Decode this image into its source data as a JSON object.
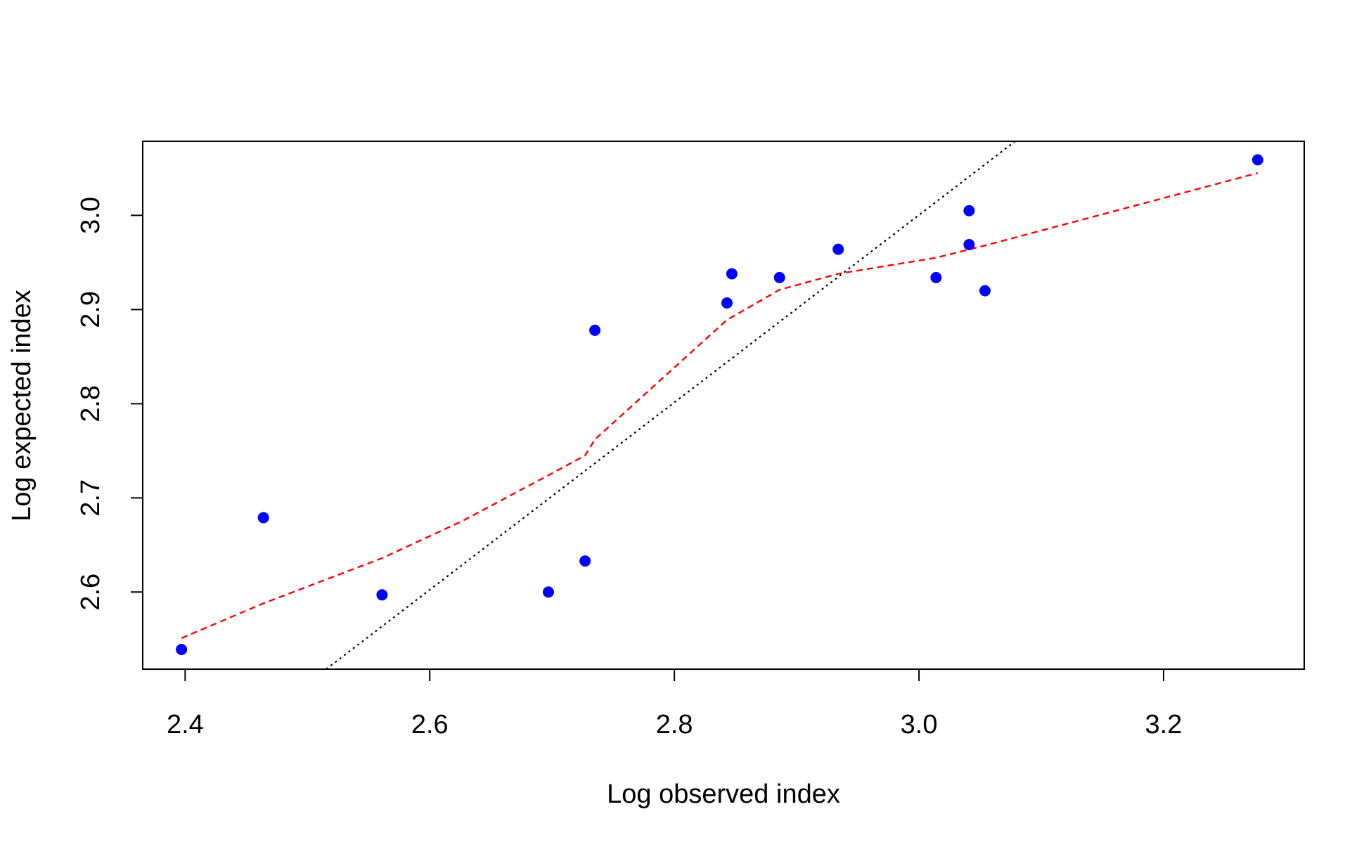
{
  "chart_data": {
    "type": "scatter",
    "title": "",
    "xlabel": "Log observed index",
    "ylabel": "Log expected index",
    "xlim": [
      2.3653,
      3.315
    ],
    "ylim": [
      2.5181,
      3.0787
    ],
    "xticks": [
      2.4,
      2.6,
      2.8,
      3.0,
      3.2
    ],
    "yticks": [
      2.6,
      2.7,
      2.8,
      2.9,
      3.0
    ],
    "xtick_labels": [
      "2.4",
      "2.6",
      "2.8",
      "3.0",
      "3.2"
    ],
    "ytick_labels": [
      "2.6",
      "2.7",
      "2.8",
      "2.9",
      "3.0"
    ],
    "grid": false,
    "legend": "none",
    "points": {
      "x": [
        2.397,
        2.464,
        2.561,
        2.697,
        2.727,
        2.735,
        2.843,
        2.847,
        2.886,
        2.934,
        3.014,
        3.041,
        3.041,
        3.054,
        3.277
      ],
      "y": [
        2.539,
        2.679,
        2.597,
        2.6,
        2.633,
        2.878,
        2.907,
        2.938,
        2.934,
        2.964,
        2.934,
        3.005,
        2.969,
        2.92,
        3.059
      ],
      "color": "#0000FF"
    },
    "series": [
      {
        "style": "dashed",
        "color": "#FF0000",
        "x": [
          2.397,
          2.464,
          2.561,
          2.626,
          2.697,
          2.727,
          2.735,
          2.843,
          2.886,
          2.934,
          3.014,
          3.054,
          3.277
        ],
        "y": [
          2.551,
          2.588,
          2.636,
          2.675,
          2.724,
          2.745,
          2.762,
          2.889,
          2.921,
          2.938,
          2.955,
          2.968,
          3.045
        ]
      },
      {
        "style": "dotted",
        "color": "#000000",
        "x": [
          2.5153,
          3.0787
        ],
        "y": [
          2.5181,
          3.0787
        ]
      }
    ]
  }
}
